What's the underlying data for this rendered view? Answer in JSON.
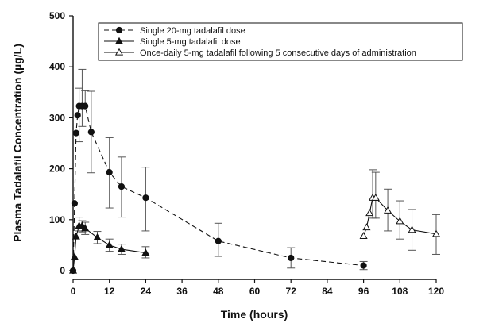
{
  "chart_data": {
    "type": "line",
    "xlabel": "Time (hours)",
    "ylabel": "Plasma Tadalafil Concentration (µg/L)",
    "xlim": [
      0,
      120
    ],
    "ylim": [
      0,
      500
    ],
    "xticks": [
      0,
      12,
      24,
      36,
      48,
      60,
      72,
      84,
      96,
      108,
      120
    ],
    "yticks": [
      0,
      100,
      200,
      300,
      400,
      500
    ],
    "grid": false,
    "legend_position": "top",
    "series": [
      {
        "name": "Single 20-mg tadalafil dose",
        "marker": "circle-filled",
        "line": "dashed",
        "color": "#111111",
        "x": [
          0,
          0.5,
          1,
          1.5,
          2,
          3,
          4,
          6,
          12,
          16,
          24,
          48,
          72,
          96
        ],
        "y": [
          0,
          132,
          270,
          305,
          323,
          323,
          323,
          272,
          193,
          165,
          143,
          58,
          25,
          10
        ],
        "error_lower": [
          null,
          null,
          null,
          null,
          70,
          40,
          null,
          80,
          70,
          60,
          65,
          30,
          20,
          8
        ],
        "error_upper": [
          null,
          null,
          null,
          null,
          35,
          72,
          30,
          80,
          68,
          58,
          60,
          35,
          20,
          8
        ]
      },
      {
        "name": "Single 5-mg tadalafil dose",
        "marker": "triangle-filled",
        "line": "solid",
        "color": "#111111",
        "x": [
          0,
          0.5,
          1,
          2,
          3,
          4,
          8,
          12,
          16,
          24
        ],
        "y": [
          0,
          27,
          67,
          88,
          88,
          83,
          65,
          50,
          42,
          35
        ],
        "error_lower": [
          null,
          null,
          null,
          10,
          12,
          12,
          12,
          12,
          10,
          10
        ],
        "error_upper": [
          null,
          null,
          null,
          17,
          10,
          12,
          12,
          12,
          10,
          12
        ]
      },
      {
        "name": "Once-daily 5-mg tadalafil following 5 consecutive days of administration",
        "marker": "triangle-open",
        "line": "solid",
        "color": "#111111",
        "x": [
          96,
          97,
          98,
          99,
          100,
          104,
          108,
          112,
          120
        ],
        "y": [
          68,
          85,
          113,
          143,
          143,
          118,
          97,
          80,
          72
        ],
        "error_lower": [
          null,
          null,
          null,
          40,
          40,
          40,
          35,
          40,
          40
        ],
        "error_upper": [
          null,
          null,
          null,
          55,
          50,
          42,
          40,
          40,
          38
        ]
      }
    ]
  }
}
